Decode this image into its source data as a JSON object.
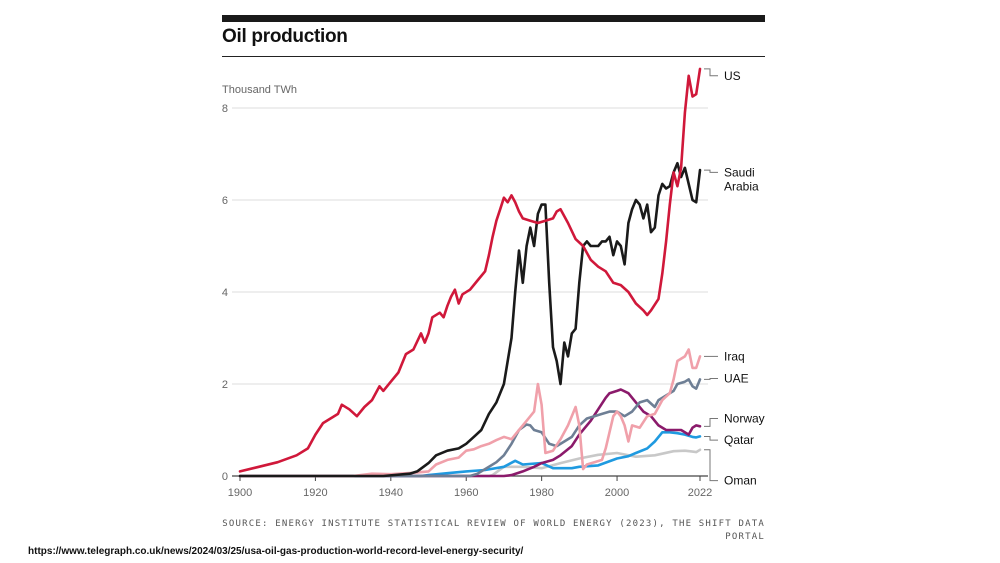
{
  "header": {
    "title": "Oil production"
  },
  "footer": {
    "source": "SOURCE: ENERGY INSTITUTE STATISTICAL REVIEW OF WORLD ENERGY (2023), THE SHIFT DATA PORTAL",
    "url": "https://www.telegraph.co.uk/news/2024/03/25/usa-oil-gas-production-world-record-level-energy-security/"
  },
  "chart_data": {
    "type": "line",
    "title": "Oil production",
    "ylabel": "Thousand TWh",
    "xlabel": "",
    "xlim": [
      1900,
      2022
    ],
    "ylim": [
      0,
      8
    ],
    "x_ticks": [
      "1900",
      "1920",
      "1940",
      "1960",
      "1980",
      "2000",
      "2022"
    ],
    "x_tick_values": [
      1900,
      1920,
      1940,
      1960,
      1980,
      2000,
      2022
    ],
    "y_ticks": [
      "0",
      "2",
      "4",
      "6",
      "8"
    ],
    "y_tick_values": [
      0,
      2,
      4,
      6,
      8
    ],
    "grid": "horizontal",
    "series": [
      {
        "name": "Oman",
        "label": "Oman",
        "color": "#c8c8c8",
        "label_value": -0.1,
        "points": [
          [
            1900,
            0
          ],
          [
            1966,
            0
          ],
          [
            1967,
            0.02
          ],
          [
            1970,
            0.2
          ],
          [
            1975,
            0.2
          ],
          [
            1980,
            0.17
          ],
          [
            1985,
            0.28
          ],
          [
            1990,
            0.38
          ],
          [
            1995,
            0.46
          ],
          [
            2000,
            0.5
          ],
          [
            2005,
            0.42
          ],
          [
            2010,
            0.45
          ],
          [
            2015,
            0.54
          ],
          [
            2018,
            0.55
          ],
          [
            2020,
            0.53
          ],
          [
            2021,
            0.52
          ],
          [
            2022,
            0.57
          ]
        ]
      },
      {
        "name": "Qatar",
        "label": "Qatar",
        "color": "#1f9ae0",
        "label_value": 0.78,
        "points": [
          [
            1900,
            0
          ],
          [
            1948,
            0
          ],
          [
            1950,
            0.02
          ],
          [
            1955,
            0.06
          ],
          [
            1960,
            0.1
          ],
          [
            1965,
            0.13
          ],
          [
            1970,
            0.2
          ],
          [
            1973,
            0.33
          ],
          [
            1975,
            0.25
          ],
          [
            1980,
            0.28
          ],
          [
            1983,
            0.17
          ],
          [
            1985,
            0.17
          ],
          [
            1988,
            0.17
          ],
          [
            1990,
            0.2
          ],
          [
            1995,
            0.23
          ],
          [
            2000,
            0.38
          ],
          [
            2003,
            0.43
          ],
          [
            2005,
            0.5
          ],
          [
            2008,
            0.6
          ],
          [
            2010,
            0.75
          ],
          [
            2012,
            0.95
          ],
          [
            2014,
            0.95
          ],
          [
            2016,
            0.93
          ],
          [
            2018,
            0.9
          ],
          [
            2020,
            0.85
          ],
          [
            2021,
            0.84
          ],
          [
            2022,
            0.86
          ]
        ]
      },
      {
        "name": "Norway",
        "label": "Norway",
        "color": "#8b1a6b",
        "label_value": 1.25,
        "points": [
          [
            1900,
            0
          ],
          [
            1970,
            0
          ],
          [
            1972,
            0.02
          ],
          [
            1975,
            0.1
          ],
          [
            1978,
            0.2
          ],
          [
            1980,
            0.28
          ],
          [
            1983,
            0.35
          ],
          [
            1985,
            0.45
          ],
          [
            1988,
            0.65
          ],
          [
            1990,
            0.9
          ],
          [
            1993,
            1.2
          ],
          [
            1995,
            1.45
          ],
          [
            1997,
            1.7
          ],
          [
            1998,
            1.8
          ],
          [
            2000,
            1.85
          ],
          [
            2001,
            1.88
          ],
          [
            2003,
            1.8
          ],
          [
            2005,
            1.6
          ],
          [
            2007,
            1.4
          ],
          [
            2009,
            1.3
          ],
          [
            2011,
            1.1
          ],
          [
            2013,
            1.0
          ],
          [
            2015,
            1.0
          ],
          [
            2017,
            1.0
          ],
          [
            2019,
            0.9
          ],
          [
            2020,
            1.05
          ],
          [
            2021,
            1.1
          ],
          [
            2022,
            1.08
          ]
        ]
      },
      {
        "name": "UAE",
        "label": "UAE",
        "color": "#6e7f95",
        "label_value": 2.12,
        "points": [
          [
            1900,
            0
          ],
          [
            1961,
            0
          ],
          [
            1963,
            0.05
          ],
          [
            1965,
            0.15
          ],
          [
            1968,
            0.3
          ],
          [
            1970,
            0.45
          ],
          [
            1972,
            0.7
          ],
          [
            1974,
            1.0
          ],
          [
            1976,
            1.12
          ],
          [
            1977,
            1.1
          ],
          [
            1978,
            1.0
          ],
          [
            1980,
            0.95
          ],
          [
            1982,
            0.7
          ],
          [
            1984,
            0.65
          ],
          [
            1986,
            0.75
          ],
          [
            1988,
            0.85
          ],
          [
            1990,
            1.1
          ],
          [
            1992,
            1.25
          ],
          [
            1994,
            1.3
          ],
          [
            1996,
            1.35
          ],
          [
            1998,
            1.4
          ],
          [
            2000,
            1.4
          ],
          [
            2002,
            1.3
          ],
          [
            2004,
            1.4
          ],
          [
            2006,
            1.6
          ],
          [
            2008,
            1.65
          ],
          [
            2010,
            1.5
          ],
          [
            2011,
            1.65
          ],
          [
            2013,
            1.75
          ],
          [
            2015,
            1.85
          ],
          [
            2016,
            2.0
          ],
          [
            2018,
            2.05
          ],
          [
            2019,
            2.1
          ],
          [
            2020,
            1.95
          ],
          [
            2021,
            1.9
          ],
          [
            2022,
            2.1
          ]
        ]
      },
      {
        "name": "Iraq",
        "label": "Iraq",
        "color": "#f0a0aa",
        "label_value": 2.6,
        "points": [
          [
            1900,
            0
          ],
          [
            1930,
            0
          ],
          [
            1935,
            0.05
          ],
          [
            1940,
            0.04
          ],
          [
            1946,
            0.07
          ],
          [
            1950,
            0.1
          ],
          [
            1952,
            0.25
          ],
          [
            1955,
            0.35
          ],
          [
            1958,
            0.4
          ],
          [
            1960,
            0.55
          ],
          [
            1962,
            0.58
          ],
          [
            1964,
            0.65
          ],
          [
            1966,
            0.7
          ],
          [
            1968,
            0.78
          ],
          [
            1970,
            0.85
          ],
          [
            1972,
            0.8
          ],
          [
            1974,
            1.0
          ],
          [
            1976,
            1.2
          ],
          [
            1978,
            1.4
          ],
          [
            1979,
            2.0
          ],
          [
            1980,
            1.55
          ],
          [
            1981,
            0.5
          ],
          [
            1983,
            0.55
          ],
          [
            1985,
            0.8
          ],
          [
            1987,
            1.1
          ],
          [
            1989,
            1.5
          ],
          [
            1990,
            1.1
          ],
          [
            1991,
            0.15
          ],
          [
            1992,
            0.25
          ],
          [
            1994,
            0.3
          ],
          [
            1996,
            0.35
          ],
          [
            1997,
            0.6
          ],
          [
            1999,
            1.3
          ],
          [
            2000,
            1.4
          ],
          [
            2001,
            1.3
          ],
          [
            2002,
            1.1
          ],
          [
            2003,
            0.75
          ],
          [
            2004,
            1.1
          ],
          [
            2006,
            1.05
          ],
          [
            2008,
            1.3
          ],
          [
            2010,
            1.35
          ],
          [
            2012,
            1.65
          ],
          [
            2014,
            1.8
          ],
          [
            2015,
            2.1
          ],
          [
            2016,
            2.5
          ],
          [
            2018,
            2.6
          ],
          [
            2019,
            2.75
          ],
          [
            2020,
            2.35
          ],
          [
            2021,
            2.35
          ],
          [
            2022,
            2.6
          ]
        ]
      },
      {
        "name": "Saudi Arabia",
        "label": "Saudi Arabia",
        "color": "#1a1a1a",
        "label_value": 6.6,
        "points": [
          [
            1900,
            0
          ],
          [
            1938,
            0
          ],
          [
            1945,
            0.05
          ],
          [
            1947,
            0.1
          ],
          [
            1950,
            0.28
          ],
          [
            1952,
            0.45
          ],
          [
            1955,
            0.55
          ],
          [
            1958,
            0.6
          ],
          [
            1960,
            0.7
          ],
          [
            1962,
            0.85
          ],
          [
            1964,
            1.0
          ],
          [
            1966,
            1.35
          ],
          [
            1968,
            1.6
          ],
          [
            1970,
            2.0
          ],
          [
            1971,
            2.5
          ],
          [
            1972,
            3.0
          ],
          [
            1973,
            4.0
          ],
          [
            1974,
            4.9
          ],
          [
            1975,
            4.2
          ],
          [
            1976,
            5.0
          ],
          [
            1977,
            5.4
          ],
          [
            1978,
            5.0
          ],
          [
            1979,
            5.7
          ],
          [
            1980,
            5.9
          ],
          [
            1981,
            5.9
          ],
          [
            1982,
            4.2
          ],
          [
            1983,
            2.8
          ],
          [
            1984,
            2.5
          ],
          [
            1985,
            2.0
          ],
          [
            1986,
            2.9
          ],
          [
            1987,
            2.6
          ],
          [
            1988,
            3.1
          ],
          [
            1989,
            3.2
          ],
          [
            1990,
            4.2
          ],
          [
            1991,
            5.0
          ],
          [
            1992,
            5.1
          ],
          [
            1993,
            5.0
          ],
          [
            1994,
            5.0
          ],
          [
            1995,
            5.0
          ],
          [
            1996,
            5.1
          ],
          [
            1997,
            5.1
          ],
          [
            1998,
            5.2
          ],
          [
            1999,
            4.8
          ],
          [
            2000,
            5.1
          ],
          [
            2001,
            5.0
          ],
          [
            2002,
            4.6
          ],
          [
            2003,
            5.5
          ],
          [
            2004,
            5.8
          ],
          [
            2005,
            6.0
          ],
          [
            2006,
            5.9
          ],
          [
            2007,
            5.6
          ],
          [
            2008,
            5.9
          ],
          [
            2009,
            5.3
          ],
          [
            2010,
            5.4
          ],
          [
            2011,
            6.1
          ],
          [
            2012,
            6.35
          ],
          [
            2013,
            6.25
          ],
          [
            2014,
            6.3
          ],
          [
            2015,
            6.6
          ],
          [
            2016,
            6.8
          ],
          [
            2017,
            6.5
          ],
          [
            2018,
            6.7
          ],
          [
            2019,
            6.35
          ],
          [
            2020,
            6.0
          ],
          [
            2021,
            5.95
          ],
          [
            2022,
            6.65
          ]
        ]
      },
      {
        "name": "US",
        "label": "US",
        "color": "#d0183a",
        "label_value": 8.7,
        "points": [
          [
            1900,
            0.1
          ],
          [
            1905,
            0.2
          ],
          [
            1910,
            0.3
          ],
          [
            1915,
            0.45
          ],
          [
            1918,
            0.6
          ],
          [
            1920,
            0.9
          ],
          [
            1922,
            1.15
          ],
          [
            1924,
            1.25
          ],
          [
            1926,
            1.35
          ],
          [
            1927,
            1.55
          ],
          [
            1929,
            1.45
          ],
          [
            1931,
            1.3
          ],
          [
            1933,
            1.5
          ],
          [
            1935,
            1.65
          ],
          [
            1937,
            1.95
          ],
          [
            1938,
            1.85
          ],
          [
            1940,
            2.05
          ],
          [
            1942,
            2.25
          ],
          [
            1944,
            2.65
          ],
          [
            1946,
            2.75
          ],
          [
            1948,
            3.1
          ],
          [
            1949,
            2.9
          ],
          [
            1950,
            3.1
          ],
          [
            1951,
            3.45
          ],
          [
            1953,
            3.55
          ],
          [
            1954,
            3.45
          ],
          [
            1955,
            3.7
          ],
          [
            1956,
            3.9
          ],
          [
            1957,
            4.05
          ],
          [
            1958,
            3.75
          ],
          [
            1959,
            3.95
          ],
          [
            1961,
            4.05
          ],
          [
            1963,
            4.25
          ],
          [
            1965,
            4.45
          ],
          [
            1966,
            4.8
          ],
          [
            1967,
            5.2
          ],
          [
            1968,
            5.55
          ],
          [
            1969,
            5.8
          ],
          [
            1970,
            6.05
          ],
          [
            1971,
            5.95
          ],
          [
            1972,
            6.1
          ],
          [
            1973,
            5.95
          ],
          [
            1974,
            5.75
          ],
          [
            1975,
            5.6
          ],
          [
            1977,
            5.55
          ],
          [
            1979,
            5.5
          ],
          [
            1981,
            5.55
          ],
          [
            1983,
            5.6
          ],
          [
            1984,
            5.75
          ],
          [
            1985,
            5.8
          ],
          [
            1987,
            5.5
          ],
          [
            1989,
            5.15
          ],
          [
            1991,
            5.0
          ],
          [
            1993,
            4.7
          ],
          [
            1995,
            4.55
          ],
          [
            1997,
            4.45
          ],
          [
            1999,
            4.2
          ],
          [
            2001,
            4.15
          ],
          [
            2003,
            4.0
          ],
          [
            2005,
            3.75
          ],
          [
            2007,
            3.6
          ],
          [
            2008,
            3.5
          ],
          [
            2009,
            3.6
          ],
          [
            2011,
            3.85
          ],
          [
            2012,
            4.4
          ],
          [
            2013,
            5.1
          ],
          [
            2014,
            5.9
          ],
          [
            2015,
            6.6
          ],
          [
            2016,
            6.3
          ],
          [
            2017,
            6.7
          ],
          [
            2018,
            7.9
          ],
          [
            2019,
            8.7
          ],
          [
            2020,
            8.25
          ],
          [
            2021,
            8.3
          ],
          [
            2022,
            8.85
          ]
        ]
      }
    ]
  }
}
